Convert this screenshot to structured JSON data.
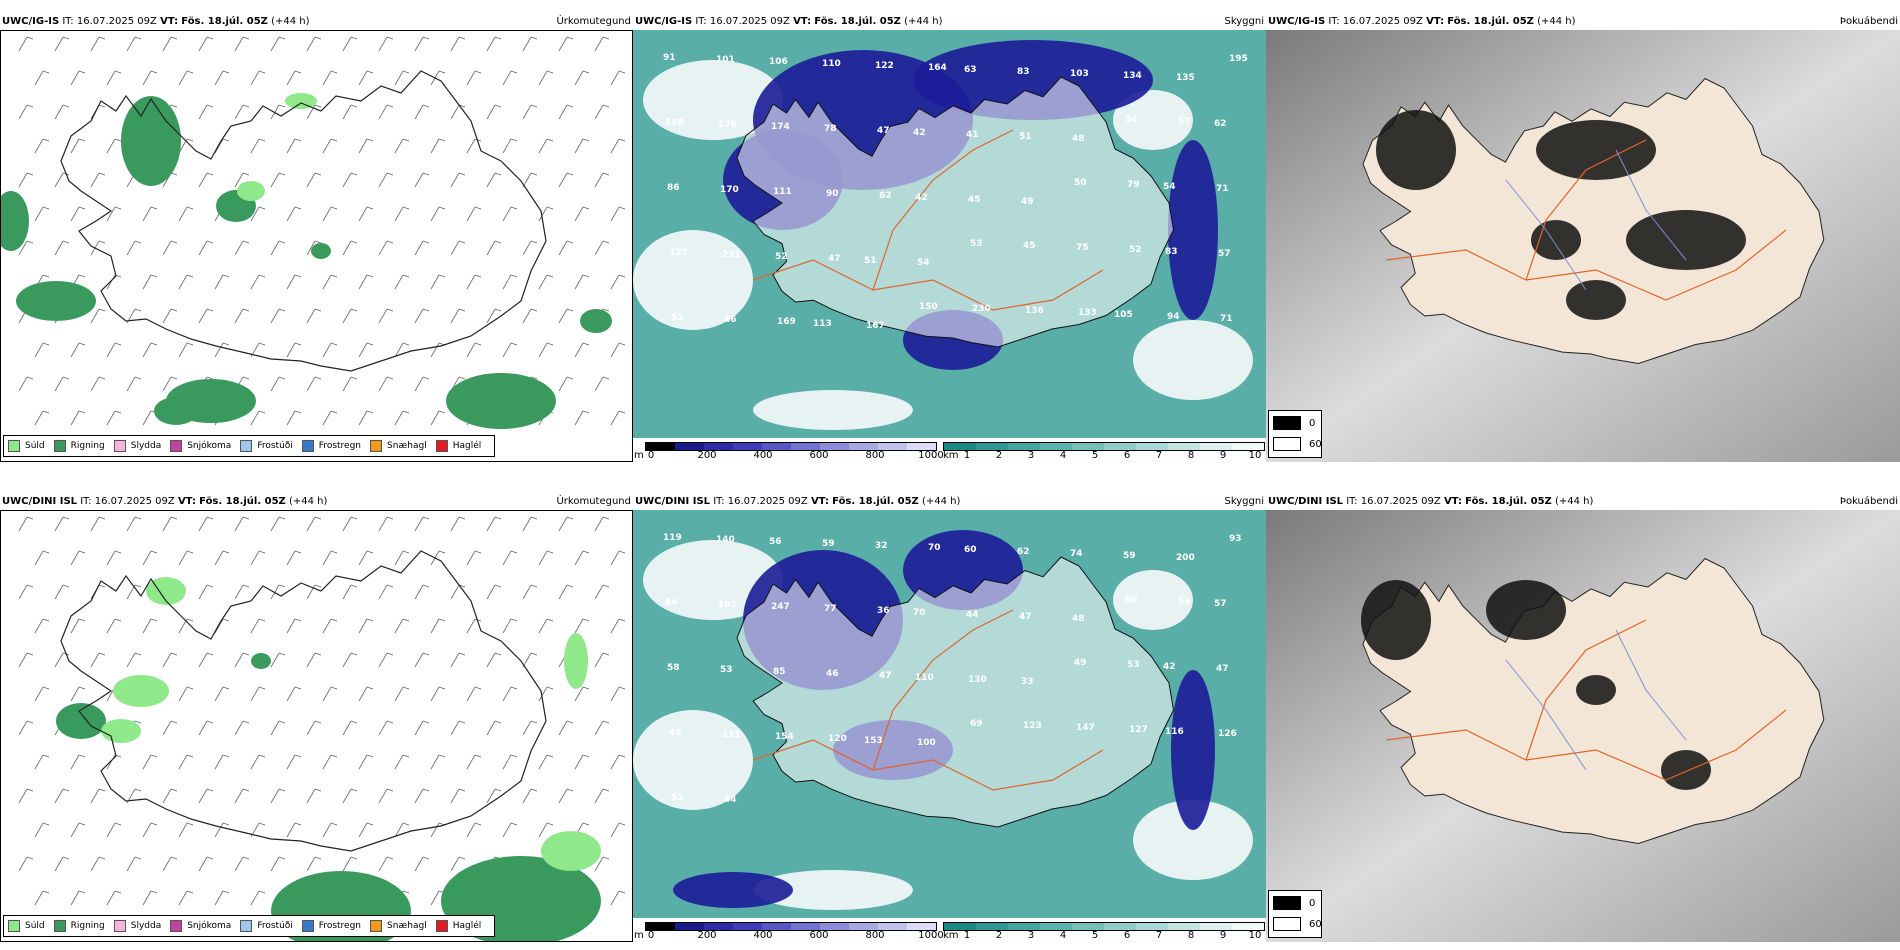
{
  "rows": [
    {
      "model": "UWC/IG-IS",
      "it_label": "IT:",
      "it_value": "16.07.2025 09Z",
      "vt_label": "VT:",
      "vt_value": "Fös. 18.júl. 05Z",
      "lead": "(+44 h)",
      "precip_title": "Úrkomutegund",
      "ceiling_title": "Skyggni",
      "cloud_title": "Þokuábendi",
      "ceiling_labels": [
        "91",
        "101",
        "106",
        "110",
        "122",
        "164",
        "63",
        "83",
        "103",
        "134",
        "135",
        "195",
        "186",
        "176",
        "174",
        "78",
        "47",
        "42",
        "41",
        "51",
        "48",
        "54",
        "57",
        "62",
        "86",
        "170",
        "111",
        "90",
        "62",
        "42",
        "45",
        "49",
        "50",
        "79",
        "54",
        "71",
        "327",
        "231",
        "52",
        "47",
        "51",
        "54",
        "53",
        "45",
        "75",
        "52",
        "83",
        "57",
        "53",
        "46",
        "169",
        "113",
        "167",
        "150",
        "230",
        "136",
        "133",
        "105",
        "94",
        "71"
      ]
    },
    {
      "model": "UWC/DINI ISL",
      "it_label": "IT:",
      "it_value": "16.07.2025 09Z",
      "vt_label": "VT:",
      "vt_value": "Fös. 18.júl. 05Z",
      "lead": "(+44 h)",
      "precip_title": "Úrkomutegund",
      "ceiling_title": "Skyggni",
      "cloud_title": "Þokuábendi",
      "ceiling_labels": [
        "119",
        "140",
        "56",
        "59",
        "32",
        "70",
        "60",
        "62",
        "74",
        "59",
        "200",
        "93",
        "84",
        "101",
        "247",
        "77",
        "36",
        "70",
        "44",
        "47",
        "48",
        "66",
        "53",
        "57",
        "58",
        "53",
        "85",
        "46",
        "47",
        "110",
        "130",
        "33",
        "49",
        "53",
        "42",
        "47",
        "46",
        "111",
        "154",
        "120",
        "153",
        "100",
        "69",
        "123",
        "147",
        "127",
        "116",
        "126",
        "53",
        "44"
      ]
    }
  ],
  "precip_legend": [
    {
      "label": "Súld",
      "color": "#8fe98a"
    },
    {
      "label": "Rigning",
      "color": "#3a9a5e"
    },
    {
      "label": "Slydda",
      "color": "#f5b6dc"
    },
    {
      "label": "Snjókoma",
      "color": "#c0449f"
    },
    {
      "label": "Frostúði",
      "color": "#9cc6ee"
    },
    {
      "label": "Frostregn",
      "color": "#3d77c6"
    },
    {
      "label": "Snæhagl",
      "color": "#f29a1c"
    },
    {
      "label": "Haglél",
      "color": "#e21c23"
    }
  ],
  "ceiling_scale": {
    "unit": "m",
    "ticks": [
      "0",
      "200",
      "400",
      "600",
      "800",
      "1000"
    ],
    "colors": [
      "#000000",
      "#1a1a8c",
      "#2c2ca4",
      "#3d3db8",
      "#5858c4",
      "#7373cf",
      "#8e8ed8",
      "#a8a8e2",
      "#c2c2ec",
      "#dcdcf6"
    ]
  },
  "visibility_scale": {
    "unit": "km",
    "ticks": [
      "1",
      "2",
      "3",
      "4",
      "5",
      "6",
      "7",
      "8",
      "9",
      "10"
    ],
    "colors": [
      "#1a8a86",
      "#2f9894",
      "#46a5a1",
      "#5db3ae",
      "#76c0bb",
      "#90cdc8",
      "#aadad5",
      "#c4e6e2",
      "#ddf2ef",
      "#f3fbfa"
    ]
  },
  "cloud_legend": [
    {
      "label": "0",
      "color": "#000000"
    },
    {
      "label": "60",
      "color": "#ffffff"
    }
  ],
  "colors": {
    "ocean_gray": "#8a8a8a",
    "land_cream": "#f3e6d6",
    "roads": "#e0642a",
    "rivers": "#7e8fd8"
  }
}
